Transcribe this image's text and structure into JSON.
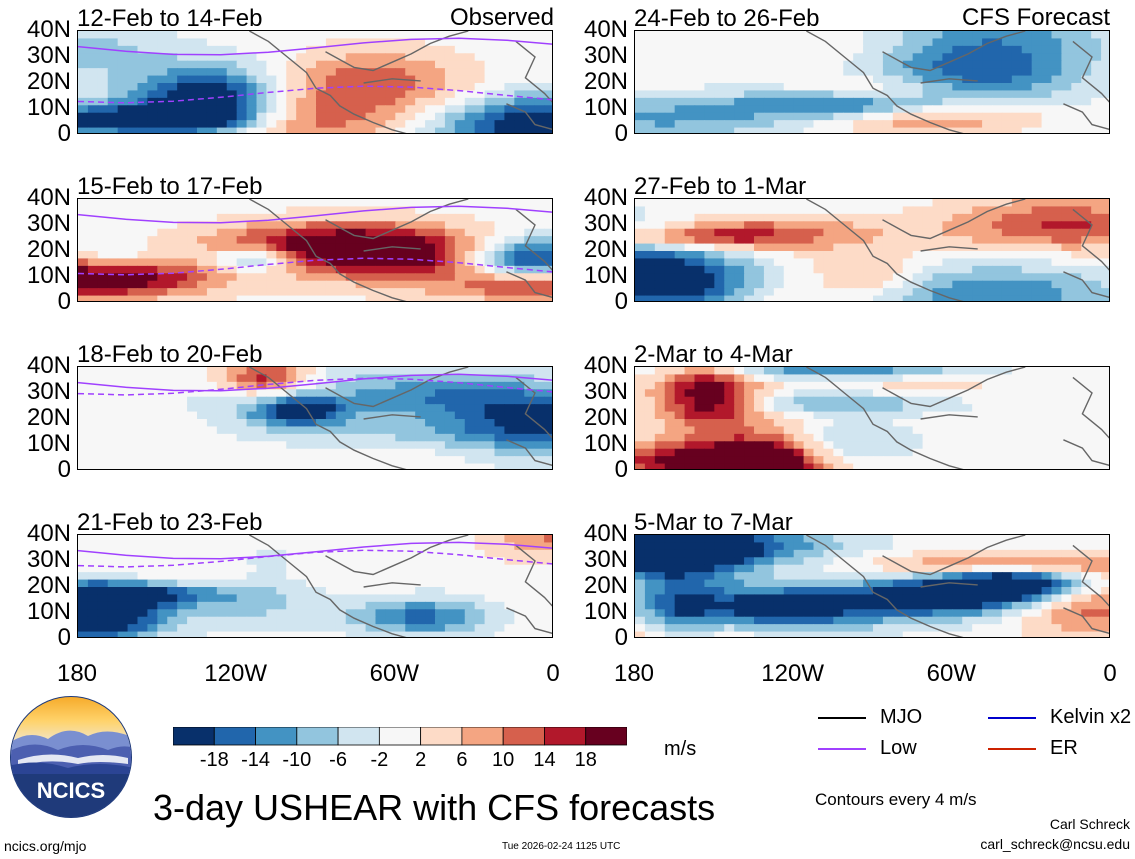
{
  "chart_data": {
    "type": "heatmap",
    "title": "3-day USHEAR with CFS forecasts",
    "units": "m/s",
    "columns": [
      {
        "header": "Observed"
      },
      {
        "header": "CFS Forecast"
      }
    ],
    "panels": [
      {
        "col": 0,
        "row": 0,
        "label": "12-Feb to 14-Feb"
      },
      {
        "col": 0,
        "row": 1,
        "label": "15-Feb to 17-Feb"
      },
      {
        "col": 0,
        "row": 2,
        "label": "18-Feb to 20-Feb"
      },
      {
        "col": 0,
        "row": 3,
        "label": "21-Feb to 23-Feb"
      },
      {
        "col": 1,
        "row": 0,
        "label": "24-Feb to 26-Feb"
      },
      {
        "col": 1,
        "row": 1,
        "label": "27-Feb to 1-Mar"
      },
      {
        "col": 1,
        "row": 2,
        "label": "2-Mar to 4-Mar"
      },
      {
        "col": 1,
        "row": 3,
        "label": "5-Mar to 7-Mar"
      }
    ],
    "yticks": [
      "40N",
      "30N",
      "20N",
      "10N",
      "0"
    ],
    "ytick_values": [
      40,
      30,
      20,
      10,
      0
    ],
    "xticks": [
      "180",
      "120W",
      "60W",
      "0"
    ],
    "xtick_values": [
      -180,
      -120,
      -60,
      0
    ],
    "xlim": [
      -180,
      0
    ],
    "ylim": [
      0,
      40
    ],
    "colorbar": {
      "ticks": [
        "-18",
        "-14",
        "-10",
        "-6",
        "-2",
        "2",
        "6",
        "10",
        "14",
        "18"
      ],
      "colors": [
        "#08306b",
        "#2166ac",
        "#4393c3",
        "#92c5de",
        "#d1e5f0",
        "#f7f7f7",
        "#fddbc7",
        "#f4a582",
        "#d6604d",
        "#b2182b",
        "#67001f"
      ]
    },
    "legend": [
      {
        "label": "MJO",
        "color": "#000000"
      },
      {
        "label": "Kelvin x2",
        "color": "#0000cc"
      },
      {
        "label": "Low",
        "color": "#a040ff"
      },
      {
        "label": "ER",
        "color": "#cc2200"
      }
    ],
    "contour_note": "Contours every 4 m/s"
  },
  "footer": {
    "left_url": "ncics.org/mjo",
    "timestamp": "Tue 2026-02-24 1125 UTC",
    "author": "Carl Schreck",
    "email": "carl_schreck@ncsu.edu",
    "logo_text": "NCICS"
  }
}
